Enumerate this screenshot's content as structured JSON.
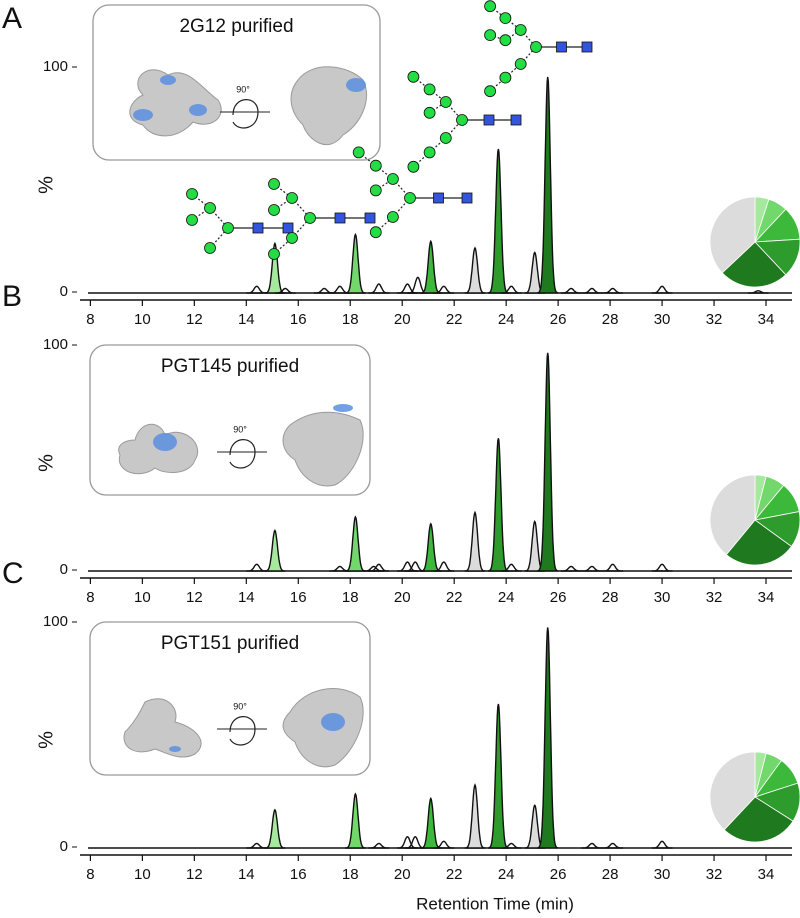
{
  "chart_data": [
    {
      "type": "chromatogram",
      "panel_label": "A",
      "inset_title": "2G12 purified",
      "rotation_label": "90°",
      "y_label": "%",
      "ylim": [
        0,
        100
      ],
      "yticks": [
        0,
        100
      ],
      "xlim": [
        7.6,
        35
      ],
      "xticks": [
        8,
        10,
        12,
        14,
        16,
        18,
        20,
        22,
        24,
        26,
        28,
        30,
        32,
        34
      ],
      "peaks": [
        {
          "x": 14.4,
          "height": 3
        },
        {
          "x": 15.1,
          "height": 22,
          "color": "#a6e89e"
        },
        {
          "x": 15.5,
          "height": 2
        },
        {
          "x": 17.0,
          "height": 2
        },
        {
          "x": 17.6,
          "height": 3
        },
        {
          "x": 18.2,
          "height": 26,
          "color": "#72d86c"
        },
        {
          "x": 19.1,
          "height": 4
        },
        {
          "x": 20.2,
          "height": 4
        },
        {
          "x": 20.6,
          "height": 7
        },
        {
          "x": 21.1,
          "height": 23,
          "color": "#3cb83a"
        },
        {
          "x": 21.6,
          "height": 3
        },
        {
          "x": 22.8,
          "height": 20,
          "color": "#dcdcdc"
        },
        {
          "x": 23.7,
          "height": 64,
          "color": "#2e9c2c"
        },
        {
          "x": 24.2,
          "height": 3
        },
        {
          "x": 25.1,
          "height": 18,
          "color": "#dcdcdc"
        },
        {
          "x": 25.6,
          "height": 96,
          "color": "#1f7a1f"
        },
        {
          "x": 26.5,
          "height": 2
        },
        {
          "x": 27.3,
          "height": 2
        },
        {
          "x": 28.1,
          "height": 2
        },
        {
          "x": 30.0,
          "height": 3
        },
        {
          "x": 33.7,
          "height": 1
        }
      ],
      "pie": {
        "type": "pie",
        "values": [
          5,
          7,
          12,
          14,
          25,
          37
        ],
        "colors": [
          "#a6e89e",
          "#72d86c",
          "#3cb83a",
          "#2e9c2c",
          "#1f7a1f",
          "#dcdcdc"
        ]
      }
    },
    {
      "type": "chromatogram",
      "panel_label": "B",
      "inset_title": "PGT145 purified",
      "rotation_label": "90°",
      "y_label": "%",
      "ylim": [
        0,
        100
      ],
      "yticks": [
        0,
        100
      ],
      "xlim": [
        7.6,
        35
      ],
      "xticks": [
        8,
        10,
        12,
        14,
        16,
        18,
        20,
        22,
        24,
        26,
        28,
        30,
        32,
        34
      ],
      "peaks": [
        {
          "x": 14.4,
          "height": 3
        },
        {
          "x": 15.1,
          "height": 18,
          "color": "#a6e89e"
        },
        {
          "x": 17.6,
          "height": 2
        },
        {
          "x": 18.2,
          "height": 24,
          "color": "#72d86c"
        },
        {
          "x": 18.9,
          "height": 2
        },
        {
          "x": 19.1,
          "height": 3
        },
        {
          "x": 20.2,
          "height": 4
        },
        {
          "x": 20.5,
          "height": 4
        },
        {
          "x": 21.1,
          "height": 21,
          "color": "#3cb83a"
        },
        {
          "x": 21.6,
          "height": 4
        },
        {
          "x": 22.8,
          "height": 26,
          "color": "#dcdcdc"
        },
        {
          "x": 23.7,
          "height": 59,
          "color": "#2e9c2c"
        },
        {
          "x": 24.2,
          "height": 3
        },
        {
          "x": 25.1,
          "height": 22,
          "color": "#dcdcdc"
        },
        {
          "x": 25.6,
          "height": 97,
          "color": "#1f7a1f"
        },
        {
          "x": 26.5,
          "height": 2
        },
        {
          "x": 27.3,
          "height": 2
        },
        {
          "x": 28.1,
          "height": 3
        },
        {
          "x": 30.0,
          "height": 3
        }
      ],
      "pie": {
        "type": "pie",
        "values": [
          4,
          7,
          11,
          13,
          26,
          39
        ],
        "colors": [
          "#a6e89e",
          "#72d86c",
          "#3cb83a",
          "#2e9c2c",
          "#1f7a1f",
          "#dcdcdc"
        ]
      }
    },
    {
      "type": "chromatogram",
      "panel_label": "C",
      "inset_title": "PGT151 purified",
      "rotation_label": "90°",
      "y_label": "%",
      "ylim": [
        0,
        100
      ],
      "yticks": [
        0,
        100
      ],
      "xlim": [
        7.6,
        35
      ],
      "xticks": [
        8,
        10,
        12,
        14,
        16,
        18,
        20,
        22,
        24,
        26,
        28,
        30,
        32,
        34
      ],
      "x_label": "Retention Time (min)",
      "peaks": [
        {
          "x": 14.4,
          "height": 2
        },
        {
          "x": 15.1,
          "height": 17,
          "color": "#a6e89e"
        },
        {
          "x": 18.2,
          "height": 24,
          "color": "#72d86c"
        },
        {
          "x": 19.1,
          "height": 2
        },
        {
          "x": 20.2,
          "height": 5
        },
        {
          "x": 20.5,
          "height": 5
        },
        {
          "x": 21.1,
          "height": 22,
          "color": "#3cb83a"
        },
        {
          "x": 21.6,
          "height": 3
        },
        {
          "x": 22.8,
          "height": 28,
          "color": "#dcdcdc"
        },
        {
          "x": 23.7,
          "height": 64,
          "color": "#2e9c2c"
        },
        {
          "x": 24.2,
          "height": 2
        },
        {
          "x": 25.1,
          "height": 19,
          "color": "#dcdcdc"
        },
        {
          "x": 25.6,
          "height": 98,
          "color": "#1f7a1f"
        },
        {
          "x": 27.3,
          "height": 2
        },
        {
          "x": 28.1,
          "height": 2
        },
        {
          "x": 30.0,
          "height": 3
        }
      ],
      "pie": {
        "type": "pie",
        "values": [
          4,
          6,
          10,
          14,
          28,
          38
        ],
        "colors": [
          "#a6e89e",
          "#72d86c",
          "#3cb83a",
          "#2e9c2c",
          "#1f7a1f",
          "#dcdcdc"
        ]
      }
    }
  ]
}
